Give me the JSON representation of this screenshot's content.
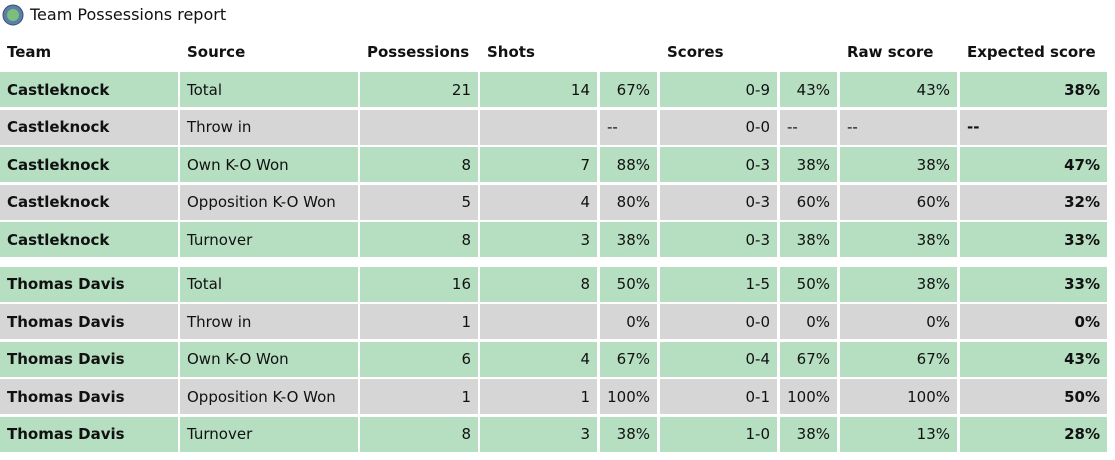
{
  "header": {
    "title": "Team Possessions report"
  },
  "table": {
    "columns": [
      "Team",
      "Source",
      "Possessions",
      "Shots",
      "Scores",
      "Raw score",
      "Expected score"
    ],
    "groups": [
      {
        "rows": [
          [
            "Castleknock",
            "Total",
            "21",
            "14",
            "67%",
            "0-9",
            "43%",
            "43%",
            "38%"
          ],
          [
            "Castleknock",
            "Throw in",
            null,
            null,
            "--",
            "0-0",
            "--",
            "--",
            "--"
          ],
          [
            "Castleknock",
            "Own K-O Won",
            "8",
            "7",
            "88%",
            "0-3",
            "38%",
            "38%",
            "47%"
          ],
          [
            "Castleknock",
            "Opposition K-O Won",
            "5",
            "4",
            "80%",
            "0-3",
            "60%",
            "60%",
            "32%"
          ],
          [
            "Castleknock",
            "Turnover",
            "8",
            "3",
            "38%",
            "0-3",
            "38%",
            "38%",
            "33%"
          ]
        ]
      },
      {
        "rows": [
          [
            "Thomas Davis",
            "Total",
            "16",
            "8",
            "50%",
            "1-5",
            "50%",
            "38%",
            "33%"
          ],
          [
            "Thomas Davis",
            "Throw in",
            "1",
            null,
            "0%",
            "0-0",
            "0%",
            "0%",
            "0%"
          ],
          [
            "Thomas Davis",
            "Own K-O Won",
            "6",
            "4",
            "67%",
            "0-4",
            "67%",
            "67%",
            "43%"
          ],
          [
            "Thomas Davis",
            "Opposition K-O Won",
            "1",
            "1",
            "100%",
            "0-1",
            "100%",
            "100%",
            "50%"
          ],
          [
            "Thomas Davis",
            "Turnover",
            "8",
            "3",
            "38%",
            "1-0",
            "38%",
            "13%",
            "28%"
          ]
        ]
      }
    ]
  }
}
